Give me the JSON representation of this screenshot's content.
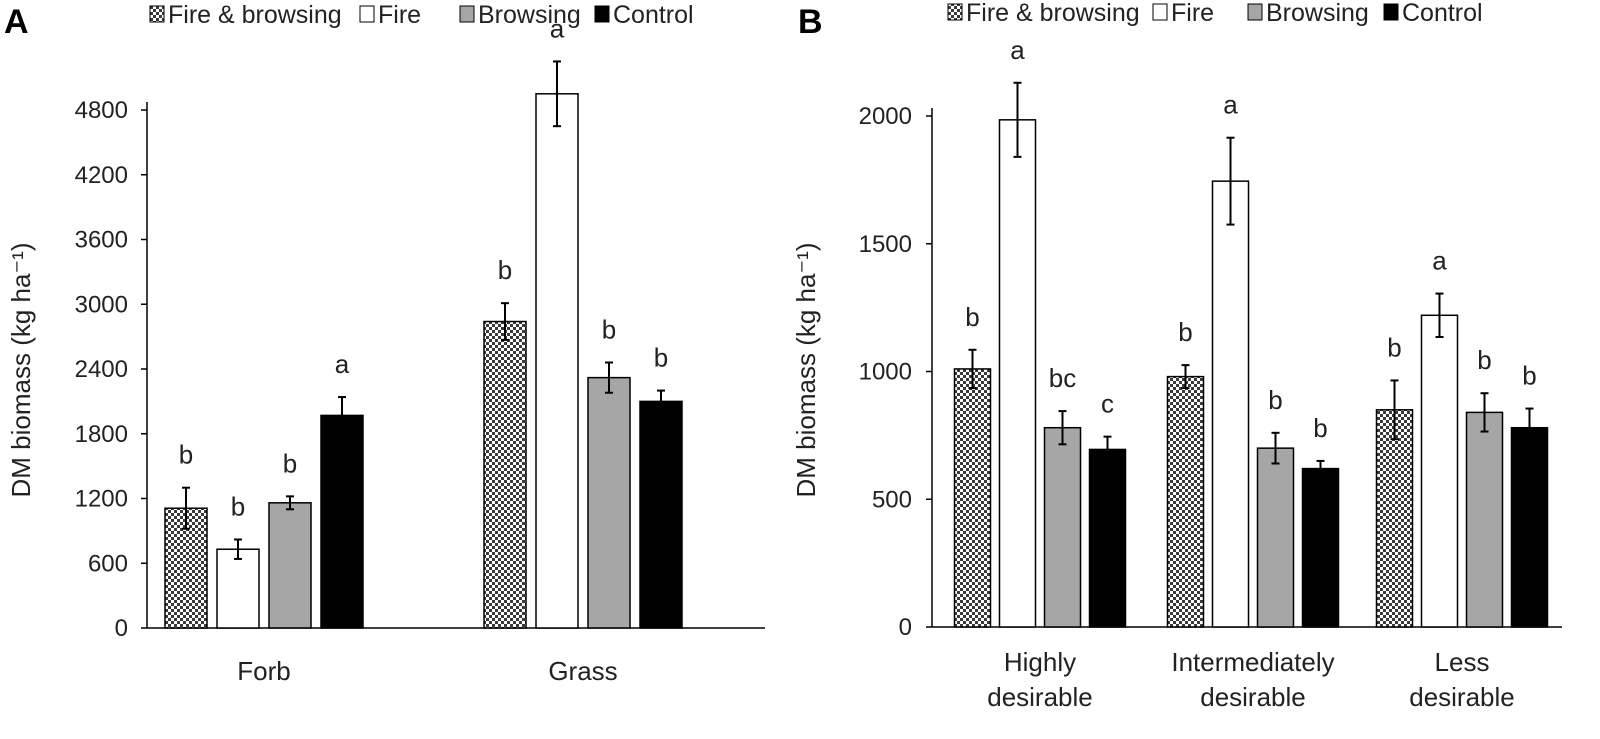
{
  "legend": {
    "items": [
      {
        "key": "fire_browsing",
        "label": "Fire & browsing",
        "fill": "pattern"
      },
      {
        "key": "fire",
        "label": "Fire",
        "fill": "#ffffff"
      },
      {
        "key": "browsing",
        "label": "Browsing",
        "fill": "#a6a6a6"
      },
      {
        "key": "control",
        "label": "Control",
        "fill": "#000000"
      }
    ],
    "placement": "top"
  },
  "colors": {
    "pattern_bg": "#ffffff",
    "pattern_ink": "#3a3a3a",
    "fire": "#ffffff",
    "browsing": "#a6a6a6",
    "control": "#000000",
    "axis": "#000000"
  },
  "chart_data": [
    {
      "panel": "A",
      "type": "bar",
      "ylabel": "DM biomass (kg ha⁻¹)",
      "ylim": [
        0,
        4800
      ],
      "yticks": [
        0,
        600,
        1200,
        1800,
        2400,
        3000,
        3600,
        4200,
        4800
      ],
      "categories": [
        "Forb",
        "Grass"
      ],
      "series": [
        {
          "name": "Fire & browsing",
          "values": [
            1110,
            2840
          ],
          "errors": [
            190,
            170
          ],
          "letters": [
            "b",
            "b"
          ]
        },
        {
          "name": "Fire",
          "values": [
            730,
            4950
          ],
          "errors": [
            90,
            300
          ],
          "letters": [
            "b",
            "a"
          ]
        },
        {
          "name": "Browsing",
          "values": [
            1160,
            2320
          ],
          "errors": [
            60,
            140
          ],
          "letters": [
            "b",
            "b"
          ]
        },
        {
          "name": "Control",
          "values": [
            1970,
            2100
          ],
          "errors": [
            170,
            100
          ],
          "letters": [
            "a",
            "b"
          ]
        }
      ],
      "grid": false
    },
    {
      "panel": "B",
      "type": "bar",
      "ylabel": "DM biomass (kg ha⁻¹)",
      "ylim": [
        0,
        2000
      ],
      "yticks": [
        0,
        500,
        1000,
        1500,
        2000
      ],
      "categories": [
        [
          "Highly",
          "desirable"
        ],
        [
          "Intermediately",
          "desirable"
        ],
        [
          "Less",
          "desirable"
        ]
      ],
      "series": [
        {
          "name": "Fire & browsing",
          "values": [
            1010,
            980,
            850
          ],
          "errors": [
            75,
            45,
            115
          ],
          "letters": [
            "b",
            "b",
            "b"
          ]
        },
        {
          "name": "Fire",
          "values": [
            1985,
            1745,
            1220
          ],
          "errors": [
            145,
            170,
            85
          ],
          "letters": [
            "a",
            "a",
            "a"
          ]
        },
        {
          "name": "Browsing",
          "values": [
            780,
            700,
            840
          ],
          "errors": [
            65,
            60,
            75
          ],
          "letters": [
            "bc",
            "b",
            "b"
          ]
        },
        {
          "name": "Control",
          "values": [
            695,
            620,
            780
          ],
          "errors": [
            50,
            30,
            75
          ],
          "letters": [
            "c",
            "b",
            "b"
          ]
        }
      ],
      "grid": false
    }
  ]
}
